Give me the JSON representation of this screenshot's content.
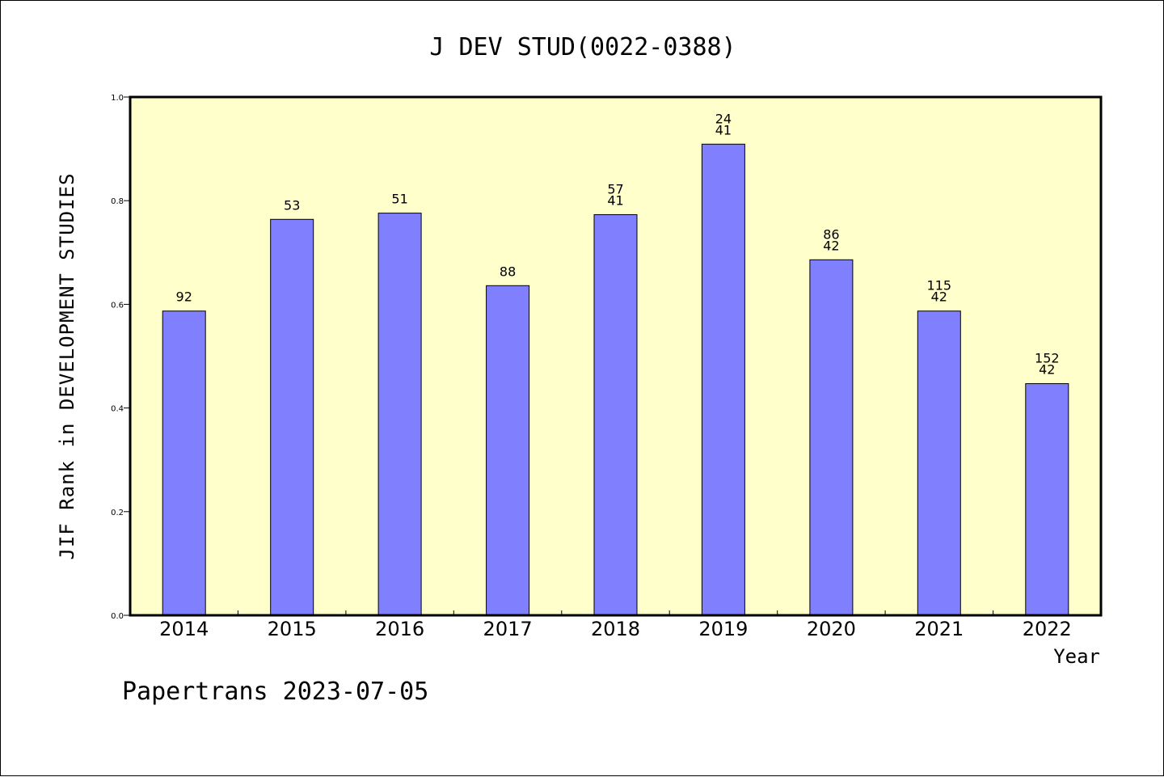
{
  "chart_data": {
    "type": "bar",
    "title": "J DEV STUD(0022-0388)",
    "xlabel": "Year",
    "ylabel": "JIF Rank in DEVELOPMENT STUDIES",
    "ylim": [
      0,
      1.0
    ],
    "yticks": [
      "0.0",
      "0.2",
      "0.4",
      "0.6",
      "0.8",
      "1.0"
    ],
    "grid": false,
    "categories": [
      "2014",
      "2015",
      "2016",
      "2017",
      "2018",
      "2019",
      "2020",
      "2021",
      "2022"
    ],
    "values": [
      0.587,
      0.764,
      0.776,
      0.636,
      0.773,
      0.909,
      0.686,
      0.587,
      0.447
    ],
    "labels": [
      [
        "92"
      ],
      [
        "53"
      ],
      [
        "51"
      ],
      [
        "88"
      ],
      [
        "57",
        "41"
      ],
      [
        "24",
        "41"
      ],
      [
        "86",
        "42"
      ],
      [
        "115",
        "42"
      ],
      [
        "152",
        "42"
      ]
    ],
    "colors": {
      "plot_background": "#ffffcc",
      "bar_fill": "#8080ff",
      "bar_stroke": "#000000"
    }
  },
  "footer": "Papertrans 2023-07-05"
}
